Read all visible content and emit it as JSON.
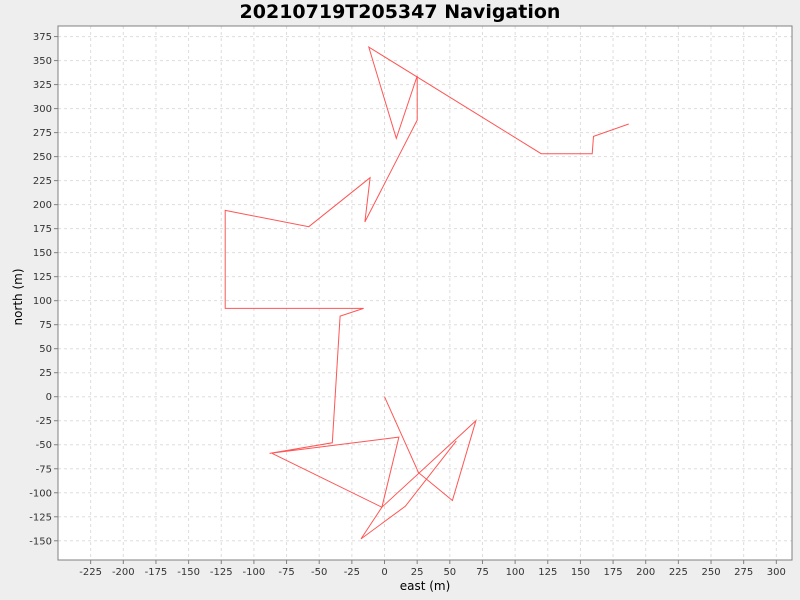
{
  "chart_data": {
    "type": "line",
    "title": "20210719T205347 Navigation",
    "xlabel": "east (m)",
    "ylabel": "north (m)",
    "xlim": [
      -250,
      312
    ],
    "ylim": [
      -170,
      386
    ],
    "x_ticks": [
      -225,
      -200,
      -175,
      -150,
      -125,
      -100,
      -75,
      -50,
      -25,
      0,
      25,
      50,
      75,
      100,
      125,
      150,
      175,
      200,
      225,
      250,
      275,
      300
    ],
    "y_ticks": [
      -150,
      -125,
      -100,
      -75,
      -50,
      -25,
      0,
      25,
      50,
      75,
      100,
      125,
      150,
      175,
      200,
      225,
      250,
      275,
      300,
      325,
      350,
      375
    ],
    "grid": true,
    "legend": "none",
    "series": [
      {
        "color": "#ff5555",
        "points": [
          [
            0,
            0
          ],
          [
            26,
            -79
          ],
          [
            52,
            -108
          ],
          [
            70,
            -25
          ],
          [
            -2,
            -115
          ],
          [
            11,
            -42
          ],
          [
            -88,
            -59
          ],
          [
            -40,
            -48
          ],
          [
            -34,
            84
          ],
          [
            -16,
            92
          ],
          [
            -122,
            92
          ],
          [
            -122,
            194
          ],
          [
            -58,
            177
          ],
          [
            -11,
            228
          ],
          [
            -15,
            182
          ],
          [
            25,
            288
          ],
          [
            25,
            334
          ],
          [
            9,
            269
          ],
          [
            -12,
            364
          ],
          [
            120,
            253
          ],
          [
            159,
            253
          ],
          [
            160,
            271
          ],
          [
            187,
            284
          ]
        ]
      },
      {
        "color": "#ff5555",
        "points": [
          [
            -86,
            -59
          ],
          [
            -2,
            -115
          ]
        ]
      },
      {
        "color": "#ff5555",
        "points": [
          [
            -2,
            -115
          ],
          [
            -18,
            -148
          ],
          [
            16,
            -114
          ],
          [
            55,
            -46
          ]
        ]
      }
    ]
  },
  "colors": {
    "background": "#eeeeee",
    "plot_background": "#ffffff",
    "grid": "#dddddd",
    "axis": "#808080",
    "line": "#ff5555"
  }
}
